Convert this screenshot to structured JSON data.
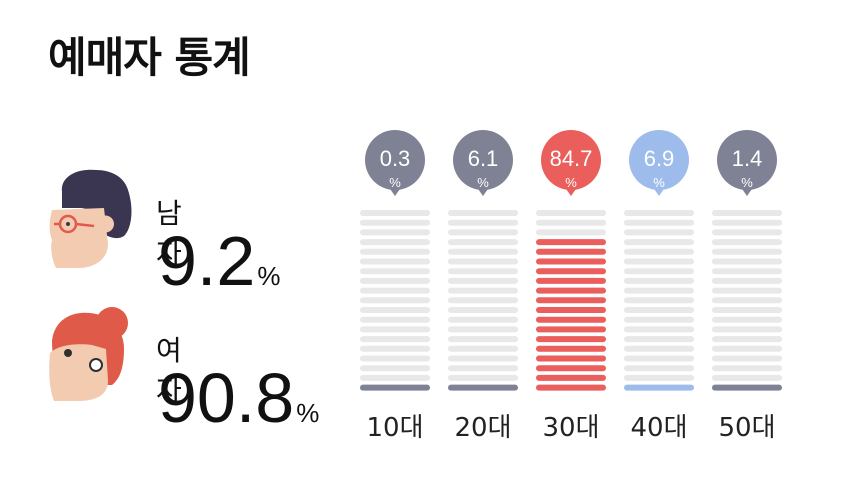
{
  "title": "예매자 통계",
  "gender": {
    "male": {
      "label": "남자",
      "value": "9.2",
      "unit": "%"
    },
    "female": {
      "label": "여자",
      "value": "90.8",
      "unit": "%"
    }
  },
  "colors": {
    "base": "#e8e8e8",
    "default_accent": "#7f8294",
    "highlight": "#ea5f5b",
    "secondary": "#9dbcec"
  },
  "icons": [
    "male-face-icon",
    "female-face-icon"
  ],
  "chart_data": {
    "type": "bar",
    "title": "",
    "xlabel": "",
    "ylabel": "",
    "categories": [
      "10대",
      "20대",
      "30대",
      "40대",
      "50대"
    ],
    "values": [
      0.3,
      6.1,
      84.7,
      6.9,
      1.4
    ],
    "value_unit": "%",
    "ylim": [
      0,
      100
    ],
    "grid": false,
    "legend": "none",
    "bar_colors": [
      "#7f8294",
      "#7f8294",
      "#ea5f5b",
      "#9dbcec",
      "#7f8294"
    ]
  }
}
